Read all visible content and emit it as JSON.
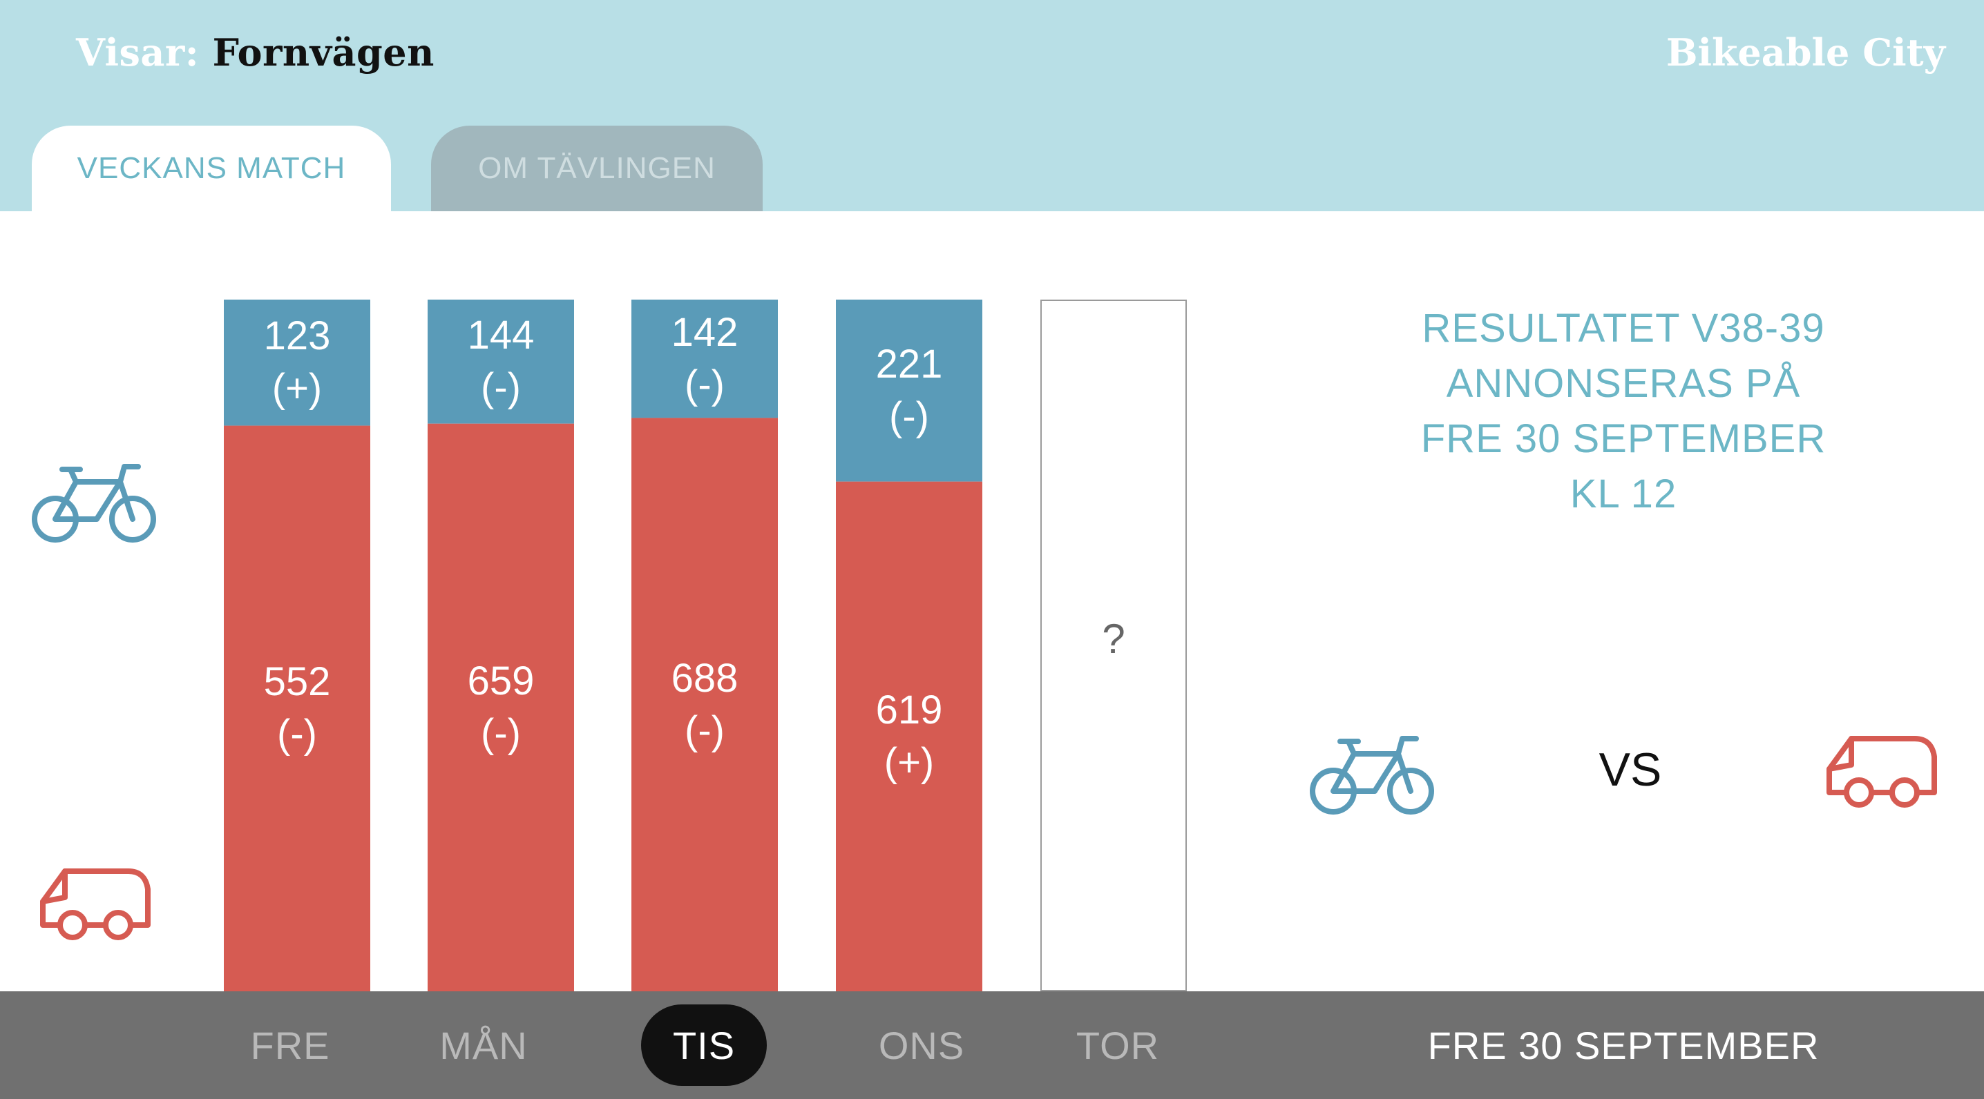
{
  "header": {
    "visar_label": "Visar:",
    "location": "Fornvägen",
    "brand": "Bikeable City"
  },
  "tabs": [
    {
      "label": "VECKANS MATCH",
      "active": true
    },
    {
      "label": "OM TÄVLINGEN",
      "active": false
    }
  ],
  "chart_data": {
    "type": "bar",
    "stacked": true,
    "categories": [
      "FRE",
      "MÅN",
      "TIS",
      "ONS",
      "TOR"
    ],
    "series": [
      {
        "name": "bike",
        "values": [
          123,
          144,
          142,
          221,
          null
        ],
        "trend": [
          "(+)",
          "(-)",
          "(-)",
          "(-)",
          ""
        ],
        "color": "#5a9bb8"
      },
      {
        "name": "car",
        "values": [
          552,
          659,
          688,
          619,
          null
        ],
        "trend": [
          "(-)",
          "(-)",
          "(-)",
          "(+)",
          ""
        ],
        "color": "#d65b52"
      }
    ],
    "unknown_label": "?"
  },
  "announcement": "RESULTATET V38-39 ANNONSERAS PÅ FRE 30 SEPTEMBER KL 12",
  "versus": {
    "label": "VS",
    "left_icon": "bicycle-icon",
    "right_icon": "car-icon"
  },
  "days": [
    {
      "label": "FRE",
      "active": false
    },
    {
      "label": "MÅN",
      "active": false
    },
    {
      "label": "TIS",
      "active": true
    },
    {
      "label": "ONS",
      "active": false
    },
    {
      "label": "TOR",
      "active": false
    }
  ],
  "date_label": "FRE 30 SEPTEMBER",
  "colors": {
    "header_bg": "#b8dfe6",
    "bike": "#5a9bb8",
    "car": "#d65b52",
    "accent_text": "#6cb6c6",
    "daybar_bg": "#707070"
  }
}
